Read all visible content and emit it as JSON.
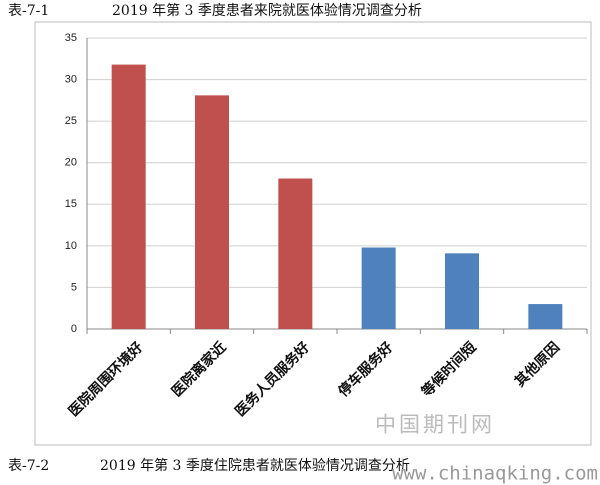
{
  "chart_data": {
    "type": "bar",
    "title_number": "表-7-1",
    "title": "2019 年第 3 季度患者来院就医体验情况调查分析",
    "categories": [
      "医院周围环境好",
      "医院离家近",
      "医务人员服务好",
      "停车服务好",
      "等候时间短",
      "其他原因"
    ],
    "values": [
      31.8,
      28.1,
      18.1,
      9.8,
      9.1,
      3.0
    ],
    "colors": [
      "#c0504d",
      "#c0504d",
      "#c0504d",
      "#4f81bd",
      "#4f81bd",
      "#4f81bd"
    ],
    "ylim": [
      0,
      35
    ],
    "yticks": [
      0,
      5,
      10,
      15,
      20,
      25,
      30,
      35
    ],
    "grid": true
  },
  "watermark": {
    "site_name": "中国期刊网",
    "url": "www.chinaqking.com"
  },
  "next_caption": {
    "number": "表-7-2",
    "text": "2019 年第 3 季度住院患者就医体验情况调查分析"
  }
}
